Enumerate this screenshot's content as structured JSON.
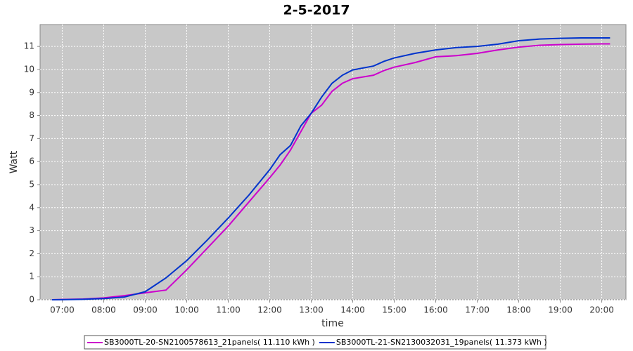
{
  "chart_data": {
    "type": "line",
    "title": "2-5-2017",
    "x_label": "time",
    "y_label": "Watt",
    "x": [
      "06:45",
      "07:00",
      "07:30",
      "08:00",
      "08:30",
      "09:00",
      "09:30",
      "10:00",
      "10:30",
      "11:00",
      "11:30",
      "12:00",
      "12:15",
      "12:30",
      "12:45",
      "13:00",
      "13:15",
      "13:30",
      "13:45",
      "14:00",
      "14:30",
      "14:45",
      "15:00",
      "15:30",
      "16:00",
      "16:30",
      "17:00",
      "17:30",
      "18:00",
      "18:30",
      "19:00",
      "19:30",
      "20:00",
      "20:12"
    ],
    "series": [
      {
        "name": "SB3000TL-20-SN2100578613_21panels( 11.110 kWh )",
        "color": "#cc00cc",
        "values": [
          0,
          0.01,
          0.03,
          0.08,
          0.18,
          0.3,
          0.42,
          1.3,
          2.25,
          3.2,
          4.25,
          5.3,
          5.85,
          6.5,
          7.3,
          8.1,
          8.45,
          9.05,
          9.4,
          9.6,
          9.75,
          9.95,
          10.1,
          10.3,
          10.55,
          10.6,
          10.7,
          10.85,
          10.97,
          11.05,
          11.08,
          11.1,
          11.11,
          11.11
        ]
      },
      {
        "name": "SB3000TL-21-SN2130032031_19panels( 11.373 kWh )",
        "color": "#0033cc",
        "values": [
          0,
          0.005,
          0.02,
          0.05,
          0.12,
          0.35,
          0.95,
          1.7,
          2.6,
          3.55,
          4.55,
          5.65,
          6.3,
          6.7,
          7.55,
          8.1,
          8.8,
          9.4,
          9.75,
          9.98,
          10.15,
          10.35,
          10.5,
          10.7,
          10.85,
          10.95,
          11.0,
          11.1,
          11.25,
          11.32,
          11.35,
          11.37,
          11.37,
          11.37
        ]
      }
    ],
    "xlim": [
      "06:28",
      "20:35"
    ],
    "xticks": [
      "07:00",
      "08:00",
      "09:00",
      "10:00",
      "11:00",
      "12:00",
      "13:00",
      "14:00",
      "15:00",
      "16:00",
      "17:00",
      "18:00",
      "19:00",
      "20:00"
    ],
    "ylim": [
      0,
      11.95
    ],
    "yticks": [
      0,
      1,
      2,
      3,
      4,
      5,
      6,
      7,
      8,
      9,
      10,
      11
    ],
    "grid": true,
    "legend": "bottom"
  }
}
